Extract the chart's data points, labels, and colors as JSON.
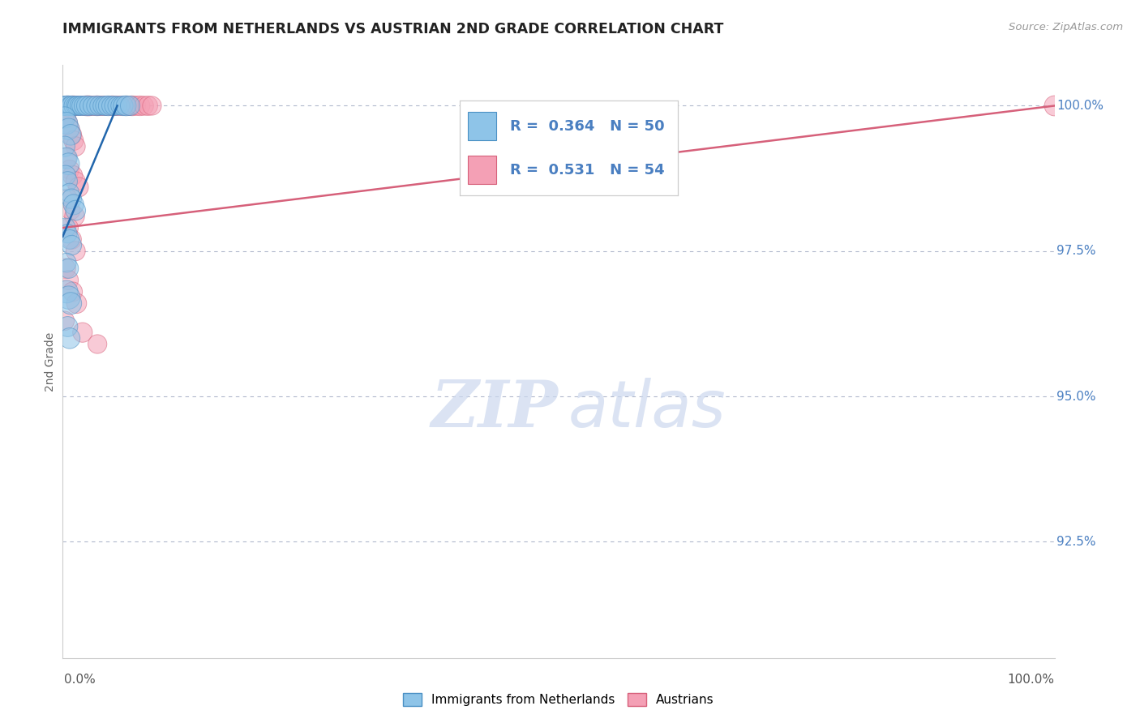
{
  "title": "IMMIGRANTS FROM NETHERLANDS VS AUSTRIAN 2ND GRADE CORRELATION CHART",
  "source_text": "Source: ZipAtlas.com",
  "ylabel": "2nd Grade",
  "legend_label1": "Immigrants from Netherlands",
  "legend_label2": "Austrians",
  "R1": 0.364,
  "N1": 50,
  "R2": 0.531,
  "N2": 54,
  "blue_color": "#8ec4e8",
  "pink_color": "#f4a0b5",
  "blue_edge_color": "#4a90c4",
  "pink_edge_color": "#d6607a",
  "blue_line_color": "#2166ac",
  "pink_line_color": "#d6607a",
  "xmin": 0.0,
  "xmax": 1.0,
  "ymin": 0.905,
  "ymax": 1.007,
  "yticks": [
    0.925,
    0.95,
    0.975,
    1.0
  ],
  "ytick_labels": [
    "92.5%",
    "95.0%",
    "97.5%",
    "100.0%"
  ],
  "blue_x": [
    0.001,
    0.003,
    0.005,
    0.007,
    0.009,
    0.011,
    0.013,
    0.015,
    0.017,
    0.019,
    0.021,
    0.024,
    0.027,
    0.03,
    0.034,
    0.037,
    0.04,
    0.043,
    0.046,
    0.049,
    0.052,
    0.055,
    0.058,
    0.061,
    0.064,
    0.068,
    0.002,
    0.004,
    0.006,
    0.008,
    0.002,
    0.004,
    0.006,
    0.003,
    0.005,
    0.007,
    0.009,
    0.011,
    0.013,
    0.003,
    0.005,
    0.007,
    0.009,
    0.004,
    0.006,
    0.004,
    0.006,
    0.008,
    0.005,
    0.007
  ],
  "blue_y": [
    1.0,
    1.0,
    1.0,
    1.0,
    1.0,
    1.0,
    1.0,
    1.0,
    1.0,
    1.0,
    1.0,
    1.0,
    1.0,
    1.0,
    1.0,
    1.0,
    1.0,
    1.0,
    1.0,
    1.0,
    1.0,
    1.0,
    1.0,
    1.0,
    1.0,
    1.0,
    0.998,
    0.997,
    0.996,
    0.995,
    0.993,
    0.991,
    0.99,
    0.988,
    0.987,
    0.985,
    0.984,
    0.983,
    0.982,
    0.979,
    0.978,
    0.977,
    0.976,
    0.973,
    0.972,
    0.968,
    0.967,
    0.966,
    0.962,
    0.96
  ],
  "blue_sizes": [
    300,
    280,
    320,
    260,
    310,
    290,
    270,
    300,
    285,
    295,
    275,
    310,
    295,
    280,
    305,
    290,
    275,
    300,
    310,
    285,
    295,
    280,
    275,
    305,
    315,
    300,
    350,
    380,
    360,
    340,
    330,
    350,
    370,
    320,
    300,
    290,
    310,
    325,
    315,
    300,
    280,
    295,
    310,
    290,
    305,
    400,
    420,
    380,
    320,
    340
  ],
  "pink_x": [
    0.002,
    0.005,
    0.008,
    0.011,
    0.014,
    0.017,
    0.02,
    0.023,
    0.026,
    0.029,
    0.032,
    0.035,
    0.038,
    0.041,
    0.044,
    0.047,
    0.05,
    0.053,
    0.056,
    0.059,
    0.062,
    0.066,
    0.07,
    0.074,
    0.078,
    0.082,
    0.086,
    0.09,
    0.003,
    0.005,
    0.007,
    0.009,
    0.011,
    0.013,
    0.004,
    0.007,
    0.01,
    0.013,
    0.016,
    0.005,
    0.008,
    0.012,
    0.006,
    0.009,
    0.013,
    0.003,
    0.006,
    0.01,
    0.014,
    0.002,
    0.02,
    0.035,
    1.0,
    0.001
  ],
  "pink_y": [
    1.0,
    1.0,
    1.0,
    1.0,
    1.0,
    1.0,
    1.0,
    1.0,
    1.0,
    1.0,
    1.0,
    1.0,
    1.0,
    1.0,
    1.0,
    1.0,
    1.0,
    1.0,
    1.0,
    1.0,
    1.0,
    1.0,
    1.0,
    1.0,
    1.0,
    1.0,
    1.0,
    1.0,
    0.998,
    0.997,
    0.996,
    0.995,
    0.994,
    0.993,
    0.991,
    0.989,
    0.988,
    0.987,
    0.986,
    0.984,
    0.982,
    0.981,
    0.979,
    0.977,
    0.975,
    0.972,
    0.97,
    0.968,
    0.966,
    0.963,
    0.961,
    0.959,
    1.0,
    0.998
  ],
  "pink_sizes": [
    280,
    300,
    290,
    310,
    285,
    295,
    275,
    305,
    320,
    280,
    295,
    310,
    285,
    300,
    290,
    275,
    310,
    300,
    285,
    295,
    280,
    300,
    310,
    290,
    305,
    285,
    295,
    280,
    320,
    310,
    305,
    315,
    300,
    295,
    300,
    290,
    310,
    295,
    305,
    300,
    285,
    310,
    290,
    300,
    295,
    310,
    295,
    300,
    315,
    290,
    305,
    280,
    320,
    300
  ],
  "background_color": "#ffffff"
}
